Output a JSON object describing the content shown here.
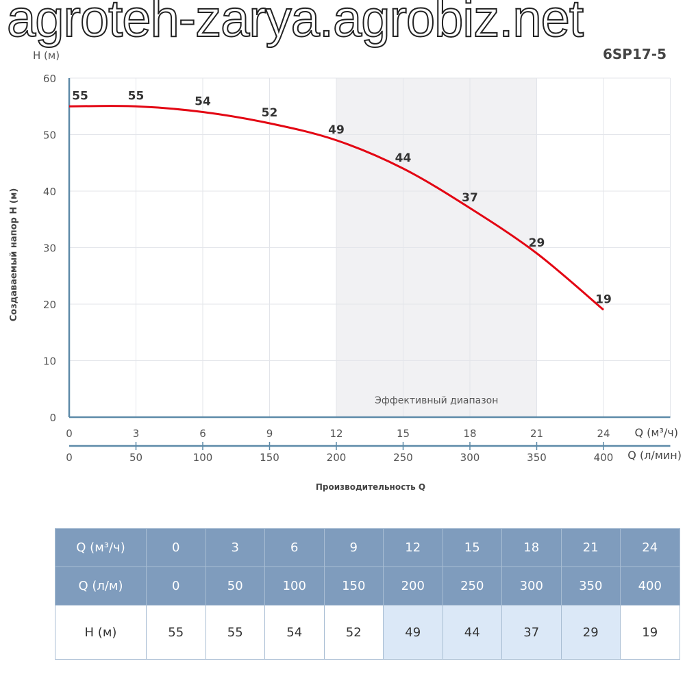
{
  "title": "6SP17-5",
  "watermark": "agroteh-zarya.agrobiz.net",
  "chart_data": {
    "type": "line",
    "title": "6SP17-5",
    "ylabel": "Создаваемый напор Н (м)",
    "yunit": "Н (м)",
    "xlabel": "Производительность Q",
    "x_unit_primary": "Q (м³/ч)",
    "x_unit_secondary": "Q (л/мин)",
    "x": [
      0,
      3,
      6,
      9,
      12,
      15,
      18,
      21,
      24
    ],
    "x_secondary": [
      0,
      50,
      100,
      150,
      200,
      250,
      300,
      350,
      400
    ],
    "series": [
      {
        "values": [
          55,
          55,
          54,
          52,
          49,
          44,
          37,
          29,
          19
        ],
        "color": "#e30613"
      }
    ],
    "xlim": [
      0,
      27
    ],
    "ylim": [
      0,
      60
    ],
    "yticks": [
      0,
      10,
      20,
      30,
      40,
      50,
      60
    ],
    "grid": true,
    "effective_range": {
      "from": 12,
      "to": 21,
      "label": "Эффективный диапазон"
    }
  },
  "table": {
    "rows": [
      {
        "label": "Q (м³/ч)",
        "values": [
          "0",
          "3",
          "6",
          "9",
          "12",
          "15",
          "18",
          "21",
          "24"
        ]
      },
      {
        "label": "Q (л/м)",
        "values": [
          "0",
          "50",
          "100",
          "150",
          "200",
          "250",
          "300",
          "350",
          "400"
        ]
      },
      {
        "label": "Н (м)",
        "values": [
          "55",
          "55",
          "54",
          "52",
          "49",
          "44",
          "37",
          "29",
          "19"
        ]
      }
    ]
  }
}
